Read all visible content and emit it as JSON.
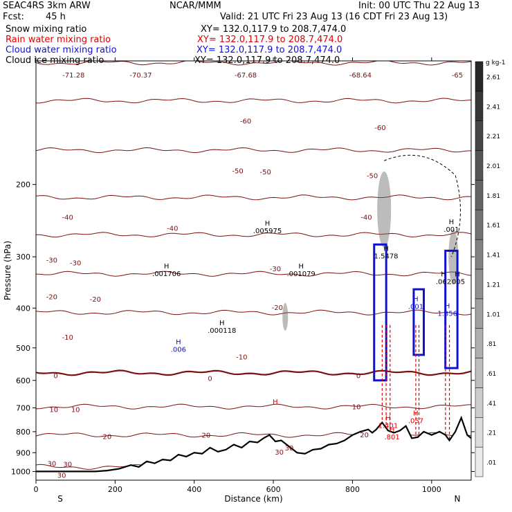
{
  "header": {
    "model": "SEAC4RS  3km ARW",
    "center": "NCAR/MMM",
    "init": "Init: 00 UTC Thu 22 Aug 13",
    "fcst_label": "Fcst:",
    "fcst_value": "45 h",
    "valid": "Valid: 21 UTC Fri 23 Aug 13 (16 CDT Fri 23 Aug 13)"
  },
  "fields": [
    {
      "name": "Snow mixing ratio",
      "xy": "XY= 132.0,117.9 to 208.7,474.0",
      "color": "#000000"
    },
    {
      "name": "Rain water mixing ratio",
      "xy": "XY= 132.0,117.9 to 208.7,474.0",
      "color": "#e00000"
    },
    {
      "name": "Cloud water mixing ratio",
      "xy": "XY= 132.0,117.9 to 208.7,474.0",
      "color": "#1010d0"
    },
    {
      "name": "Cloud ice mixing ratio",
      "xy": "XY= 132.0,117.9 to 208.7,474.0",
      "color": "#000000"
    }
  ],
  "chart_data": {
    "type": "cross-section",
    "xlabel": "Distance (km)",
    "ylabel": "Pressure (hPa)",
    "xlim": [
      0,
      1100
    ],
    "ylim": [
      1050,
      100
    ],
    "y_log": true,
    "x_ticks": [
      0,
      200,
      400,
      600,
      800,
      1000
    ],
    "y_ticks": [
      200,
      300,
      400,
      500,
      600,
      700,
      800,
      900,
      1000
    ],
    "x_end_labels": {
      "left": "S",
      "right": "N"
    },
    "colorbar": {
      "unit": "g kg-1",
      "levels": [
        ".01",
        ".21",
        ".41",
        ".61",
        ".81",
        "1.01",
        "1.21",
        "1.41",
        "1.61",
        "1.81",
        "2.01",
        "2.21",
        "2.41",
        "2.61"
      ]
    },
    "temperature_contours": [
      {
        "value": -65,
        "p": 101
      },
      {
        "value": -60,
        "p": 125
      },
      {
        "value": -50,
        "p": 165
      },
      {
        "value": -40,
        "p": 215
      },
      {
        "value": -30,
        "p": 265
      },
      {
        "value": -20,
        "p": 330
      },
      {
        "value": -10,
        "p": 410
      },
      {
        "value": 0,
        "p": 575
      },
      {
        "value": 10,
        "p": 695
      },
      {
        "value": 20,
        "p": 815
      },
      {
        "value": 30,
        "p": 975
      }
    ],
    "contour_labels": [
      {
        "text": "-71.28",
        "x": 95,
        "p": 108
      },
      {
        "text": "-70.37",
        "x": 265,
        "p": 108
      },
      {
        "text": "-67.68",
        "x": 530,
        "p": 108
      },
      {
        "text": "-68.64",
        "x": 820,
        "p": 108
      },
      {
        "text": "-65",
        "x": 1065,
        "p": 108
      },
      {
        "text": "-60",
        "x": 530,
        "p": 140
      },
      {
        "text": "-60",
        "x": 870,
        "p": 145
      },
      {
        "text": "-50",
        "x": 510,
        "p": 185
      },
      {
        "text": "-50",
        "x": 580,
        "p": 186
      },
      {
        "text": "-50",
        "x": 850,
        "p": 190
      },
      {
        "text": "-40",
        "x": 80,
        "p": 240
      },
      {
        "text": "-40",
        "x": 345,
        "p": 255
      },
      {
        "text": "-40",
        "x": 835,
        "p": 240
      },
      {
        "text": "-30",
        "x": 40,
        "p": 305
      },
      {
        "text": "-30",
        "x": 100,
        "p": 310
      },
      {
        "text": "-30",
        "x": 605,
        "p": 320
      },
      {
        "text": "-20",
        "x": 40,
        "p": 375
      },
      {
        "text": "-20",
        "x": 150,
        "p": 380
      },
      {
        "text": "-20",
        "x": 610,
        "p": 398
      },
      {
        "text": "-10",
        "x": 80,
        "p": 470
      },
      {
        "text": "-10",
        "x": 520,
        "p": 525
      },
      {
        "text": "0",
        "x": 50,
        "p": 583
      },
      {
        "text": "0",
        "x": 440,
        "p": 592
      },
      {
        "text": "0",
        "x": 815,
        "p": 583
      },
      {
        "text": "10",
        "x": 45,
        "p": 705
      },
      {
        "text": "10",
        "x": 100,
        "p": 705
      },
      {
        "text": "10",
        "x": 810,
        "p": 695
      },
      {
        "text": "20",
        "x": 180,
        "p": 820
      },
      {
        "text": "20",
        "x": 430,
        "p": 815
      },
      {
        "text": "20",
        "x": 830,
        "p": 812
      },
      {
        "text": "30",
        "x": 40,
        "p": 955
      },
      {
        "text": "30",
        "x": 80,
        "p": 958
      },
      {
        "text": "30",
        "x": 615,
        "p": 895
      },
      {
        "text": "30",
        "x": 640,
        "p": 875
      },
      {
        "text": "30",
        "x": 65,
        "p": 1020
      }
    ],
    "hl_annotations": [
      {
        "letter": "H",
        "value": ".005975",
        "x": 585,
        "p": 252,
        "color": "#000000"
      },
      {
        "letter": "H",
        "value": ".001706",
        "x": 330,
        "p": 320,
        "color": "#000000"
      },
      {
        "letter": "H",
        "value": ".001079",
        "x": 670,
        "p": 320,
        "color": "#000000"
      },
      {
        "letter": "H",
        "value": "1.5478",
        "x": 885,
        "p": 290,
        "color": "#000000"
      },
      {
        "letter": "H",
        "value": ".000118",
        "x": 470,
        "p": 440,
        "color": "#000000"
      },
      {
        "letter": "H",
        "value": ".006",
        "x": 360,
        "p": 490,
        "color": "#1010d0"
      },
      {
        "letter": "H",
        "value": "",
        "x": 605,
        "p": 685,
        "color": "#e00000"
      },
      {
        "letter": "H",
        "value": ".057",
        "x": 960,
        "p": 730,
        "color": "#e00000"
      },
      {
        "letter": "H",
        "value": "1.401",
        "x": 890,
        "p": 750,
        "color": "#e00000"
      },
      {
        "letter": "H",
        "value": ".801",
        "x": 900,
        "p": 800,
        "color": "#e00000"
      },
      {
        "letter": "H",
        "value": "1.356",
        "x": 1040,
        "p": 400,
        "color": "#1010d0"
      },
      {
        "letter": "H",
        "value": ".062",
        "x": 1030,
        "p": 335,
        "color": "#000000"
      },
      {
        "letter": "H",
        "value": ".005",
        "x": 1065,
        "p": 335,
        "color": "#000000"
      },
      {
        "letter": "H",
        "value": ".001",
        "x": 1050,
        "p": 250,
        "color": "#000000"
      },
      {
        "letter": "H",
        "value": ".001",
        "x": 960,
        "p": 385,
        "color": "#1010d0"
      }
    ],
    "terrain": [
      [
        0,
        1000
      ],
      [
        150,
        1000
      ],
      [
        180,
        995
      ],
      [
        210,
        985
      ],
      [
        240,
        965
      ],
      [
        260,
        975
      ],
      [
        280,
        945
      ],
      [
        300,
        955
      ],
      [
        320,
        935
      ],
      [
        340,
        940
      ],
      [
        360,
        910
      ],
      [
        380,
        920
      ],
      [
        400,
        900
      ],
      [
        420,
        905
      ],
      [
        440,
        875
      ],
      [
        460,
        895
      ],
      [
        480,
        885
      ],
      [
        500,
        860
      ],
      [
        520,
        875
      ],
      [
        540,
        845
      ],
      [
        560,
        850
      ],
      [
        575,
        830
      ],
      [
        590,
        815
      ],
      [
        605,
        845
      ],
      [
        620,
        840
      ],
      [
        640,
        870
      ],
      [
        660,
        900
      ],
      [
        680,
        905
      ],
      [
        700,
        885
      ],
      [
        720,
        880
      ],
      [
        740,
        860
      ],
      [
        760,
        855
      ],
      [
        780,
        840
      ],
      [
        800,
        815
      ],
      [
        820,
        800
      ],
      [
        840,
        790
      ],
      [
        850,
        805
      ],
      [
        860,
        790
      ],
      [
        875,
        760
      ],
      [
        890,
        795
      ],
      [
        905,
        805
      ],
      [
        920,
        795
      ],
      [
        935,
        775
      ],
      [
        950,
        830
      ],
      [
        965,
        825
      ],
      [
        980,
        800
      ],
      [
        1000,
        815
      ],
      [
        1020,
        800
      ],
      [
        1035,
        815
      ],
      [
        1045,
        840
      ],
      [
        1060,
        800
      ],
      [
        1075,
        740
      ],
      [
        1090,
        815
      ],
      [
        1100,
        830
      ]
    ]
  }
}
